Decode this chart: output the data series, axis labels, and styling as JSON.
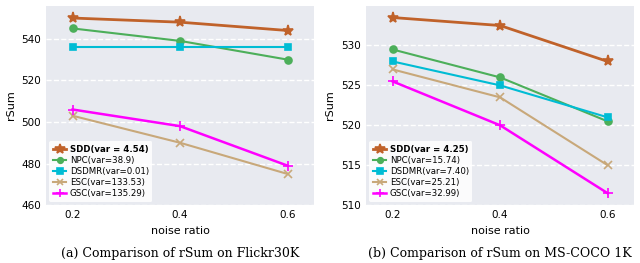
{
  "flickr": {
    "x": [
      0.2,
      0.4,
      0.6
    ],
    "SDD": [
      550,
      548,
      544
    ],
    "NPC": [
      545,
      539,
      530
    ],
    "DSDMR": [
      536,
      536,
      536
    ],
    "ESC": [
      503,
      490,
      475
    ],
    "GSC": [
      506,
      498,
      479
    ],
    "legend": [
      {
        "label": "SDD(var = 4.54)",
        "bold": true
      },
      {
        "label": "NPC(var=38.9)",
        "bold": false
      },
      {
        "label": "DSDMR(var=0.01)",
        "bold": false
      },
      {
        "label": "ESC(var=133.53)",
        "bold": false
      },
      {
        "label": "GSC(var=135.29)",
        "bold": false
      }
    ],
    "ylim": [
      460,
      556
    ],
    "yticks": [
      460,
      480,
      500,
      520,
      540
    ],
    "ylabel": "rSum",
    "xlabel": "noise ratio",
    "caption": "(a) Comparison of rSum on Flickr30K"
  },
  "coco": {
    "x": [
      0.2,
      0.4,
      0.6
    ],
    "SDD": [
      533.5,
      532.5,
      528
    ],
    "NPC": [
      529.5,
      526,
      520.5
    ],
    "DSDMR": [
      528,
      525,
      521
    ],
    "ESC": [
      527,
      523.5,
      515
    ],
    "GSC": [
      525.5,
      520,
      511.5
    ],
    "legend": [
      {
        "label": "SDD(var = 4.25)",
        "bold": true
      },
      {
        "label": "NPC(var=15.74)",
        "bold": false
      },
      {
        "label": "DSDMR(var=7.40)",
        "bold": false
      },
      {
        "label": "ESC(var=25.21)",
        "bold": false
      },
      {
        "label": "GSC(var=32.99)",
        "bold": false
      }
    ],
    "ylim": [
      510,
      535
    ],
    "yticks": [
      510,
      515,
      520,
      525,
      530
    ],
    "ylabel": "rSum",
    "xlabel": "noise ratio",
    "caption": "(b) Comparison of rSum on MS-COCO 1K"
  },
  "colors": {
    "SDD": "#c0622a",
    "NPC": "#4caf5a",
    "DSDMR": "#00bcd4",
    "ESC": "#c8a87a",
    "GSC": "#ff00ff"
  },
  "markers": {
    "SDD": "*",
    "NPC": "o",
    "DSDMR": "s",
    "ESC": "x",
    "GSC": "+"
  },
  "marker_sizes": {
    "SDD": 8,
    "NPC": 5,
    "DSDMR": 5,
    "ESC": 6,
    "GSC": 7
  },
  "linewidths": {
    "SDD": 2.0,
    "NPC": 1.5,
    "DSDMR": 1.5,
    "ESC": 1.5,
    "GSC": 1.8
  },
  "bg_color": "#e8eaf0",
  "grid_color": "#ffffff",
  "caption_fontsize": 9
}
